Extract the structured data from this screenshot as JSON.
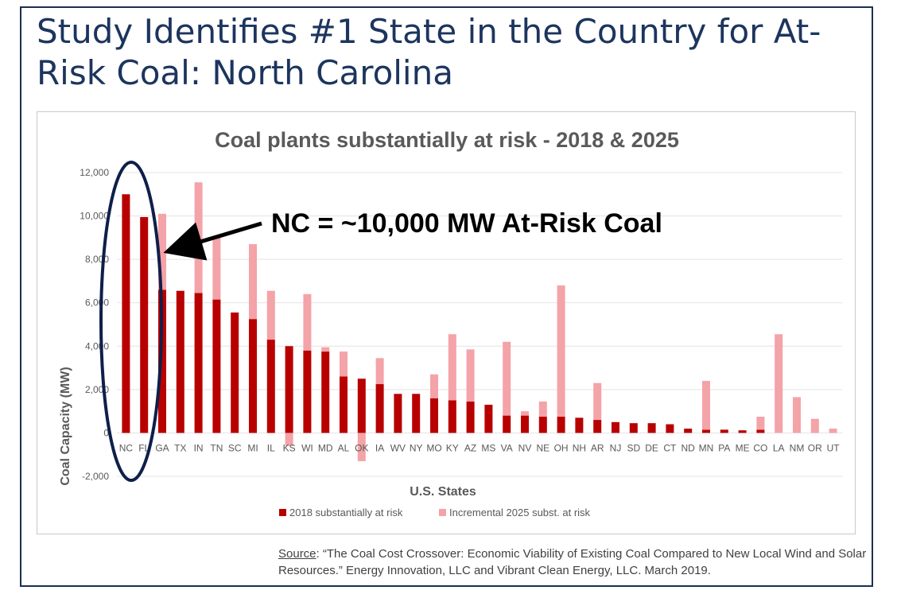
{
  "slide": {
    "title": "Study Identifies #1 State in the Country for At-Risk Coal: North Carolina",
    "annotation": "NC = ~10,000 MW At-Risk Coal",
    "source_label": "Source",
    "source_text": ": “The Coal Cost Crossover: Economic Viability of Existing Coal Compared to New Local Wind and Solar Resources.” Energy Innovation, LLC and Vibrant Clean Energy, LLC. March 2019."
  },
  "chart_data": {
    "type": "bar",
    "stacked": true,
    "title": "Coal plants substantially at risk - 2018 & 2025",
    "xlabel": "U.S. States",
    "ylabel": "Coal Capacity (MW)",
    "ylim": [
      -2000,
      12000
    ],
    "yticks": [
      -2000,
      0,
      2000,
      4000,
      6000,
      8000,
      10000,
      12000
    ],
    "ytick_labels": [
      "-2,000",
      "0",
      "2,000",
      "4,000",
      "6,000",
      "8,000",
      "10,000",
      "12,000"
    ],
    "grid": true,
    "legend_position": "bottom",
    "categories": [
      "NC",
      "FL",
      "GA",
      "TX",
      "IN",
      "TN",
      "SC",
      "MI",
      "IL",
      "KS",
      "WI",
      "MD",
      "AL",
      "OK",
      "IA",
      "WV",
      "NY",
      "MO",
      "KY",
      "AZ",
      "MS",
      "VA",
      "NV",
      "NE",
      "OH",
      "NH",
      "AR",
      "NJ",
      "SD",
      "DE",
      "CT",
      "ND",
      "MN",
      "PA",
      "ME",
      "CO",
      "LA",
      "NM",
      "OR",
      "UT"
    ],
    "series": [
      {
        "name": "2018 substantially at risk",
        "color": "#b80000",
        "values": [
          11000,
          9950,
          6600,
          6550,
          6450,
          6150,
          5550,
          5250,
          4300,
          4000,
          3800,
          3750,
          2600,
          2500,
          2250,
          1800,
          1800,
          1600,
          1500,
          1450,
          1300,
          800,
          800,
          750,
          750,
          700,
          600,
          500,
          450,
          450,
          400,
          200,
          150,
          150,
          120,
          150,
          0,
          0,
          0,
          0
        ]
      },
      {
        "name": "Incremental 2025 subst. at risk",
        "color": "#f4a3a8",
        "values": [
          0,
          0,
          3500,
          0,
          5100,
          2850,
          0,
          3450,
          2250,
          -600,
          2600,
          200,
          1150,
          -1300,
          1200,
          0,
          0,
          1100,
          3050,
          2400,
          0,
          3400,
          200,
          700,
          6050,
          0,
          1700,
          0,
          0,
          0,
          0,
          0,
          2250,
          0,
          0,
          600,
          4550,
          1650,
          650,
          200
        ]
      }
    ]
  }
}
